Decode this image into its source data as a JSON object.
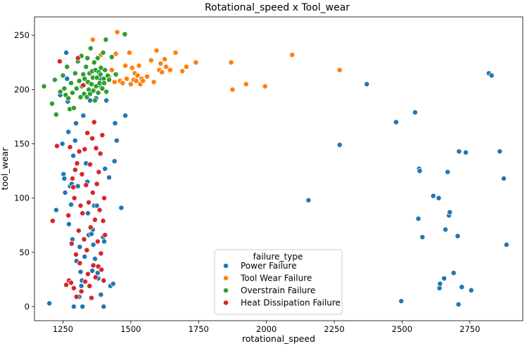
{
  "chart_data": {
    "type": "scatter",
    "title": "Rotational_speed x Tool_wear",
    "xlabel": "rotational_speed",
    "ylabel": "tool_wear",
    "xlim": [
      1145,
      2945
    ],
    "ylim": [
      -13,
      267
    ],
    "x_ticks": [
      {
        "value": 1250,
        "label": "1250"
      },
      {
        "value": 1500,
        "label": "1500"
      },
      {
        "value": 1750,
        "label": "1750"
      },
      {
        "value": 2000,
        "label": "2000"
      },
      {
        "value": 2250,
        "label": "2250"
      },
      {
        "value": 2500,
        "label": "2500"
      },
      {
        "value": 2750,
        "label": "2750"
      }
    ],
    "y_ticks": [
      {
        "value": 0,
        "label": "0"
      },
      {
        "value": 50,
        "label": "50"
      },
      {
        "value": 100,
        "label": "100"
      },
      {
        "value": 150,
        "label": "150"
      },
      {
        "value": 200,
        "label": "200"
      },
      {
        "value": 250,
        "label": "250"
      }
    ],
    "grid": false,
    "legend": {
      "title": "failure_type",
      "position": "lower-center",
      "entries": [
        "Power Failure",
        "Tool Wear Failure",
        "Overstrain Failure",
        "Heat Dissipation Failure"
      ]
    },
    "series": [
      {
        "name": "Power Failure",
        "color": "#1f77b4",
        "points": [
          [
            1200,
            3
          ],
          [
            1225,
            89
          ],
          [
            1240,
            195
          ],
          [
            1248,
            150
          ],
          [
            1252,
            122
          ],
          [
            1255,
            118
          ],
          [
            1258,
            105
          ],
          [
            1262,
            234
          ],
          [
            1265,
            210
          ],
          [
            1268,
            189
          ],
          [
            1270,
            161
          ],
          [
            1272,
            76
          ],
          [
            1276,
            111
          ],
          [
            1280,
            94
          ],
          [
            1282,
            113
          ],
          [
            1285,
            62
          ],
          [
            1288,
            139
          ],
          [
            1290,
            0
          ],
          [
            1295,
            153
          ],
          [
            1298,
            169
          ],
          [
            1300,
            42
          ],
          [
            1305,
            111
          ],
          [
            1310,
            9
          ],
          [
            1312,
            55
          ],
          [
            1315,
            32
          ],
          [
            1318,
            19
          ],
          [
            1320,
            24
          ],
          [
            1322,
            0
          ],
          [
            1325,
            176
          ],
          [
            1330,
            46
          ],
          [
            1335,
            132
          ],
          [
            1340,
            115
          ],
          [
            1342,
            86
          ],
          [
            1345,
            66
          ],
          [
            1350,
            190
          ],
          [
            1355,
            67
          ],
          [
            1358,
            33
          ],
          [
            1360,
            71
          ],
          [
            1362,
            57
          ],
          [
            1365,
            93
          ],
          [
            1368,
            44
          ],
          [
            1372,
            192
          ],
          [
            1375,
            93
          ],
          [
            1378,
            31
          ],
          [
            1380,
            26
          ],
          [
            1385,
            204
          ],
          [
            1388,
            210
          ],
          [
            1390,
            11
          ],
          [
            1398,
            64
          ],
          [
            1400,
            0
          ],
          [
            1402,
            60
          ],
          [
            1405,
            127
          ],
          [
            1410,
            190
          ],
          [
            1420,
            119
          ],
          [
            1425,
            19
          ],
          [
            1435,
            21
          ],
          [
            1440,
            134
          ],
          [
            1442,
            169
          ],
          [
            1448,
            153
          ],
          [
            1460,
            208
          ],
          [
            1465,
            91
          ],
          [
            1480,
            176
          ],
          [
            2155,
            98
          ],
          [
            2270,
            149
          ],
          [
            2370,
            205
          ],
          [
            2478,
            170
          ],
          [
            2497,
            5
          ],
          [
            2548,
            179
          ],
          [
            2560,
            81
          ],
          [
            2563,
            127
          ],
          [
            2565,
            125
          ],
          [
            2575,
            64
          ],
          [
            2615,
            102
          ],
          [
            2635,
            100
          ],
          [
            2638,
            17
          ],
          [
            2640,
            21
          ],
          [
            2655,
            26
          ],
          [
            2660,
            71
          ],
          [
            2668,
            124
          ],
          [
            2673,
            84
          ],
          [
            2676,
            87
          ],
          [
            2690,
            31
          ],
          [
            2705,
            65
          ],
          [
            2708,
            2
          ],
          [
            2710,
            143
          ],
          [
            2720,
            18
          ],
          [
            2735,
            142
          ],
          [
            2755,
            15
          ],
          [
            2820,
            215
          ],
          [
            2830,
            213
          ],
          [
            2860,
            143
          ],
          [
            2875,
            118
          ],
          [
            2885,
            57
          ]
        ]
      },
      {
        "name": "Tool Wear Failure",
        "color": "#ff7f0e",
        "points": [
          [
            1360,
            246
          ],
          [
            1390,
            232
          ],
          [
            1420,
            212
          ],
          [
            1430,
            218
          ],
          [
            1440,
            207
          ],
          [
            1445,
            233
          ],
          [
            1450,
            253
          ],
          [
            1460,
            208
          ],
          [
            1470,
            206
          ],
          [
            1480,
            222
          ],
          [
            1485,
            210
          ],
          [
            1495,
            234
          ],
          [
            1500,
            205
          ],
          [
            1505,
            220
          ],
          [
            1510,
            209
          ],
          [
            1515,
            215
          ],
          [
            1520,
            208
          ],
          [
            1525,
            213
          ],
          [
            1530,
            222
          ],
          [
            1535,
            205
          ],
          [
            1540,
            210
          ],
          [
            1545,
            208
          ],
          [
            1560,
            212
          ],
          [
            1575,
            227
          ],
          [
            1585,
            207
          ],
          [
            1595,
            236
          ],
          [
            1605,
            218
          ],
          [
            1610,
            224
          ],
          [
            1615,
            216
          ],
          [
            1625,
            228
          ],
          [
            1630,
            221
          ],
          [
            1645,
            218
          ],
          [
            1665,
            234
          ],
          [
            1690,
            217
          ],
          [
            1705,
            221
          ],
          [
            1740,
            225
          ],
          [
            1870,
            225
          ],
          [
            1875,
            200
          ],
          [
            1925,
            205
          ],
          [
            1995,
            203
          ],
          [
            2095,
            232
          ],
          [
            2270,
            218
          ]
        ]
      },
      {
        "name": "Overstrain Failure",
        "color": "#2ca02c",
        "points": [
          [
            1180,
            203
          ],
          [
            1210,
            187
          ],
          [
            1220,
            209
          ],
          [
            1225,
            177
          ],
          [
            1240,
            198
          ],
          [
            1250,
            213
          ],
          [
            1255,
            201
          ],
          [
            1260,
            195
          ],
          [
            1265,
            221
          ],
          [
            1270,
            192
          ],
          [
            1275,
            182
          ],
          [
            1280,
            206
          ],
          [
            1285,
            197
          ],
          [
            1290,
            183
          ],
          [
            1295,
            215
          ],
          [
            1300,
            201
          ],
          [
            1305,
            226
          ],
          [
            1310,
            208
          ],
          [
            1315,
            193
          ],
          [
            1318,
            231
          ],
          [
            1320,
            203
          ],
          [
            1325,
            214
          ],
          [
            1328,
            196
          ],
          [
            1330,
            210
          ],
          [
            1335,
            221
          ],
          [
            1338,
            193
          ],
          [
            1340,
            229
          ],
          [
            1342,
            207
          ],
          [
            1345,
            200
          ],
          [
            1348,
            215
          ],
          [
            1350,
            196
          ],
          [
            1352,
            238
          ],
          [
            1355,
            205
          ],
          [
            1358,
            217
          ],
          [
            1360,
            211
          ],
          [
            1362,
            199
          ],
          [
            1365,
            225
          ],
          [
            1368,
            190
          ],
          [
            1370,
            218
          ],
          [
            1372,
            203
          ],
          [
            1375,
            211
          ],
          [
            1378,
            229
          ],
          [
            1380,
            197
          ],
          [
            1382,
            216
          ],
          [
            1385,
            206
          ],
          [
            1388,
            214
          ],
          [
            1390,
            220
          ],
          [
            1395,
            201
          ],
          [
            1398,
            234
          ],
          [
            1400,
            210
          ],
          [
            1402,
            206
          ],
          [
            1405,
            218
          ],
          [
            1408,
            246
          ],
          [
            1410,
            198
          ],
          [
            1415,
            213
          ],
          [
            1420,
            209
          ],
          [
            1430,
            230
          ],
          [
            1445,
            214
          ],
          [
            1478,
            251
          ]
        ]
      },
      {
        "name": "Heat Dissipation Failure",
        "color": "#d62728",
        "points": [
          [
            1212,
            79
          ],
          [
            1228,
            148
          ],
          [
            1238,
            226
          ],
          [
            1262,
            20
          ],
          [
            1270,
            84
          ],
          [
            1272,
            24
          ],
          [
            1276,
            147
          ],
          [
            1280,
            22
          ],
          [
            1282,
            58
          ],
          [
            1285,
            118
          ],
          [
            1288,
            110
          ],
          [
            1290,
            17
          ],
          [
            1292,
            100
          ],
          [
            1295,
            126
          ],
          [
            1298,
            48
          ],
          [
            1300,
            9
          ],
          [
            1302,
            132
          ],
          [
            1305,
            229
          ],
          [
            1308,
            70
          ],
          [
            1310,
            143
          ],
          [
            1312,
            40
          ],
          [
            1315,
            93
          ],
          [
            1318,
            14
          ],
          [
            1320,
            122
          ],
          [
            1322,
            86
          ],
          [
            1325,
            204
          ],
          [
            1328,
            62
          ],
          [
            1330,
            145
          ],
          [
            1332,
            23
          ],
          [
            1335,
            112
          ],
          [
            1338,
            52
          ],
          [
            1340,
            160
          ],
          [
            1342,
            30
          ],
          [
            1345,
            96
          ],
          [
            1348,
            19
          ],
          [
            1350,
            131
          ],
          [
            1352,
            73
          ],
          [
            1355,
            8
          ],
          [
            1358,
            155
          ],
          [
            1360,
            105
          ],
          [
            1362,
            38
          ],
          [
            1365,
            170
          ],
          [
            1368,
            80
          ],
          [
            1370,
            27
          ],
          [
            1372,
            146
          ],
          [
            1375,
            113
          ],
          [
            1378,
            60
          ],
          [
            1380,
            37
          ],
          [
            1382,
            124
          ],
          [
            1385,
            89
          ],
          [
            1388,
            141
          ],
          [
            1390,
            49
          ],
          [
            1392,
            34
          ],
          [
            1395,
            158
          ],
          [
            1398,
            79
          ],
          [
            1400,
            24
          ],
          [
            1402,
            100
          ],
          [
            1405,
            66
          ]
        ]
      }
    ]
  }
}
